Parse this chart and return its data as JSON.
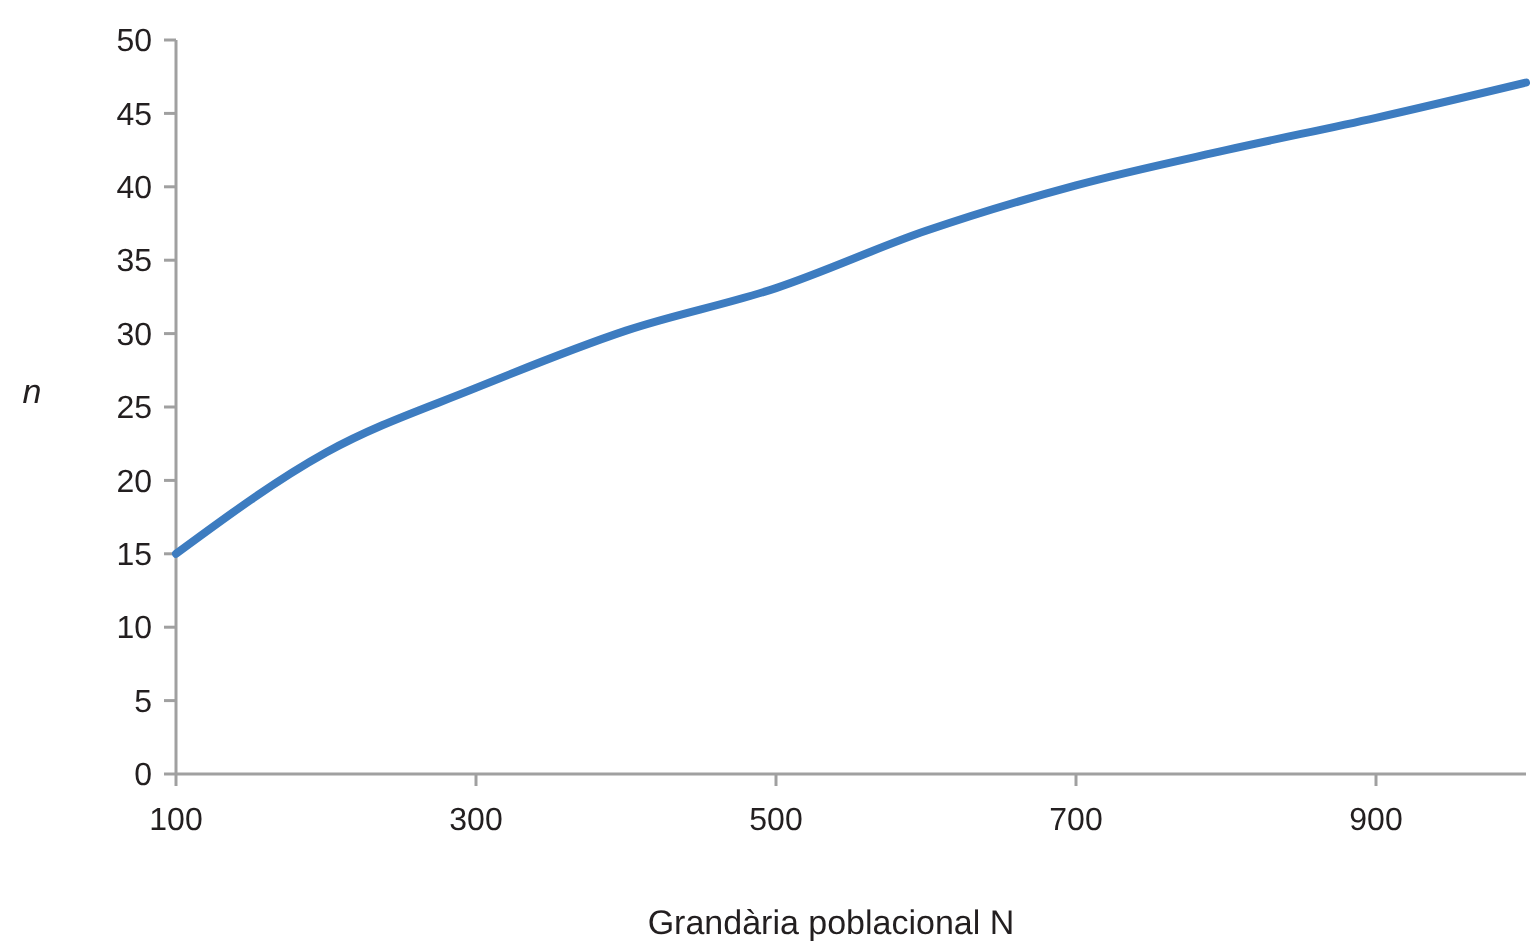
{
  "chart_data": {
    "type": "line",
    "xlabel": "Grandària poblacional N",
    "ylabel": "n",
    "x": [
      100,
      200,
      300,
      400,
      500,
      600,
      700,
      800,
      900,
      1000
    ],
    "series": [
      {
        "color": "#3d7cc0",
        "values": [
          15,
          21.9,
          26.3,
          30.2,
          33.1,
          37,
          40.1,
          42.5,
          44.7,
          47.1
        ]
      }
    ],
    "xlim": [
      100,
      1000
    ],
    "xticks": [
      100,
      300,
      500,
      700,
      900
    ],
    "ylim": [
      0,
      50
    ],
    "yticks": [
      0,
      5,
      10,
      15,
      20,
      25,
      30,
      35,
      40,
      45,
      50
    ],
    "grid": false,
    "marker": "none",
    "line_style": "solid"
  }
}
